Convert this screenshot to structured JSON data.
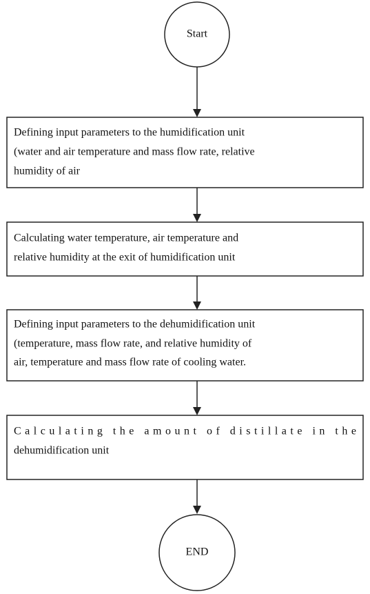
{
  "nodes": [
    {
      "label": "Start"
    },
    {
      "lines": [
        "Defining input parameters to the humidification unit",
        "(water and air temperature and mass flow rate, relative",
        "humidity of air"
      ]
    },
    {
      "lines": [
        "Calculating water temperature, air temperature and",
        "relative humidity at the exit of humidification unit"
      ]
    },
    {
      "lines": [
        "Defining input parameters to the dehumidification unit",
        "(temperature, mass flow rate, and relative humidity of",
        "air, temperature and mass flow rate of cooling water."
      ]
    },
    {
      "lines": [
        "Calculating the amount of distillate in the",
        "dehumidification unit"
      ]
    },
    {
      "label": "END"
    }
  ]
}
